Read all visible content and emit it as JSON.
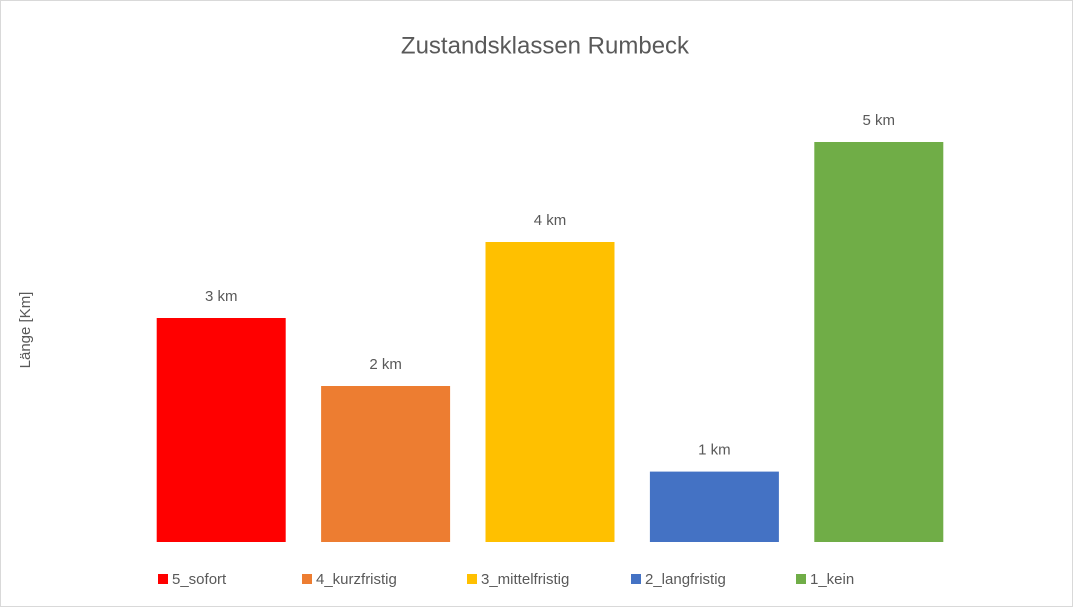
{
  "chart_data": {
    "type": "bar",
    "title": "Zustandsklassen Rumbeck",
    "y_label": "Länge [Km]",
    "categories": [
      "5_sofort",
      "4_kurzfristig",
      "3_mittelfristig",
      "2_langfristig",
      "1_kein"
    ],
    "values": [
      2.8,
      1.95,
      3.75,
      0.88,
      5.0
    ],
    "value_labels": [
      "3 km",
      "2 km",
      "4 km",
      "1 km",
      "5 km"
    ],
    "colors": [
      "#ff0000",
      "#ed7d31",
      "#ffc000",
      "#4472c4",
      "#70ad47"
    ],
    "legend": "bottom"
  }
}
